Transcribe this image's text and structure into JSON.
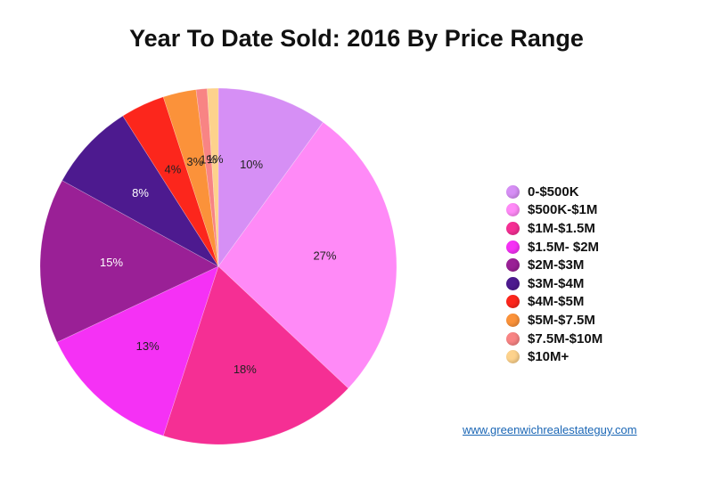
{
  "chart_data": {
    "type": "pie",
    "title": "Year To Date Sold: 2016 By Price Range",
    "slices": [
      {
        "label": "0-$500K",
        "value": 10,
        "display": "10%",
        "color": "#d68ff5"
      },
      {
        "label": "$500K-$1M",
        "value": 27,
        "display": "27%",
        "color": "#ff8af7"
      },
      {
        "label": "$1M-$1.5M",
        "value": 18,
        "display": "18%",
        "color": "#f52f94"
      },
      {
        "label": "$1.5M- $2M",
        "value": 13,
        "display": "13%",
        "color": "#f531f5"
      },
      {
        "label": "$2M-$3M",
        "value": 15,
        "display": "15%",
        "color": "#9a2096"
      },
      {
        "label": "$3M-$4M",
        "value": 8,
        "display": "8%",
        "color": "#4d1a8f"
      },
      {
        "label": "$4M-$5M",
        "value": 4,
        "display": "4%",
        "color": "#fc261c"
      },
      {
        "label": "$5M-$7.5M",
        "value": 3,
        "display": "3%",
        "color": "#fb923a"
      },
      {
        "label": "$7.5M-$10M",
        "value": 1,
        "display": "1%",
        "color": "#f88484"
      },
      {
        "label": "$10M+",
        "value": 1,
        "display": "1%",
        "color": "#fdd28c"
      }
    ],
    "legend_position": "right"
  },
  "footer": {
    "link_text": "www.greenwichrealestateguy.com"
  }
}
